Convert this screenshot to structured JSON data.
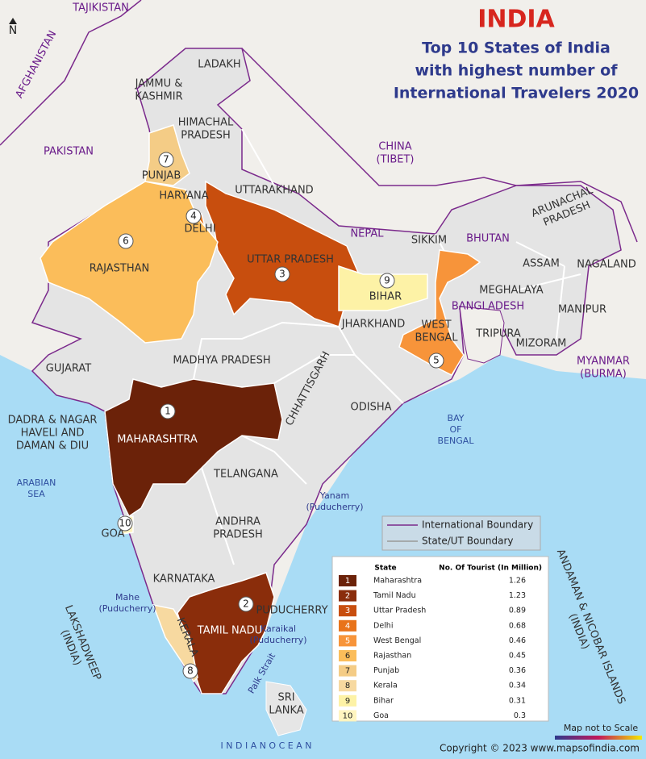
{
  "header": {
    "title": "INDIA",
    "subtitle_lines": [
      "Top 10 States of India",
      "with highest number of",
      "International Travelers 2020"
    ]
  },
  "north": "N",
  "places": [
    {
      "lines": [
        "TAJIKISTAN"
      ]
    },
    {
      "lines": [
        "AFGHANISTAN"
      ]
    },
    {
      "lines": [
        "PAKISTAN"
      ]
    },
    {
      "lines": [
        "LADAKH"
      ]
    },
    {
      "lines": [
        "JAMMU &",
        "KASHMIR"
      ]
    },
    {
      "lines": [
        "HIMACHAL",
        "PRADESH"
      ]
    },
    {
      "lines": [
        "CHINA",
        "(TIBET)"
      ]
    },
    {
      "lines": [
        "PUNJAB"
      ]
    },
    {
      "lines": [
        "HARYANA"
      ]
    },
    {
      "lines": [
        "UTTARAKHAND"
      ]
    },
    {
      "lines": [
        "DELHI"
      ]
    },
    {
      "lines": [
        "RAJASTHAN"
      ]
    },
    {
      "lines": [
        "UTTAR  PRADESH"
      ]
    },
    {
      "lines": [
        "NEPAL"
      ]
    },
    {
      "lines": [
        "SIKKIM"
      ]
    },
    {
      "lines": [
        "BHUTAN"
      ]
    },
    {
      "lines": [
        "ARUNACHAL",
        "PRADESH"
      ]
    },
    {
      "lines": [
        "ASSAM"
      ]
    },
    {
      "lines": [
        "NAGALAND"
      ]
    },
    {
      "lines": [
        "BIHAR"
      ]
    },
    {
      "lines": [
        "MEGHALAYA"
      ]
    },
    {
      "lines": [
        "BANGLADESH"
      ]
    },
    {
      "lines": [
        "MANIPUR"
      ]
    },
    {
      "lines": [
        "JHARKHAND"
      ]
    },
    {
      "lines": [
        "WEST",
        "BENGAL"
      ]
    },
    {
      "lines": [
        "TRIPURA"
      ]
    },
    {
      "lines": [
        "MIZORAM"
      ]
    },
    {
      "lines": [
        "MYANMAR",
        "(BURMA)"
      ]
    },
    {
      "lines": [
        "GUJARAT"
      ]
    },
    {
      "lines": [
        "MADHYA PRADESH"
      ]
    },
    {
      "lines": [
        "CHHATTISGARH"
      ]
    },
    {
      "lines": [
        "ODISHA"
      ]
    },
    {
      "lines": [
        "BAY",
        "OF",
        "BENGAL"
      ]
    },
    {
      "lines": [
        "DADRA & NAGAR",
        "HAVELI AND",
        "DAMAN & DIU"
      ]
    },
    {
      "lines": [
        "MAHARASHTRA"
      ]
    },
    {
      "lines": [
        "TELANGANA"
      ]
    },
    {
      "lines": [
        "ARABIAN",
        "SEA"
      ]
    },
    {
      "lines": [
        "Yanam",
        "(Puducherry)"
      ]
    },
    {
      "lines": [
        "ANDHRA",
        "PRADESH"
      ]
    },
    {
      "lines": [
        "GOA"
      ]
    },
    {
      "lines": [
        "KARNATAKA"
      ]
    },
    {
      "lines": [
        "Mahe",
        "(Puducherry)"
      ]
    },
    {
      "lines": [
        "PUDUCHERRY"
      ]
    },
    {
      "lines": [
        "TAMIL NADU"
      ]
    },
    {
      "lines": [
        "KERALA"
      ]
    },
    {
      "lines": [
        "Karaikal",
        "(Puducherry)"
      ]
    },
    {
      "lines": [
        "LAKSHADWEEP",
        "(INDIA)"
      ]
    },
    {
      "lines": [
        "Palk Strait"
      ]
    },
    {
      "lines": [
        "ANDAMAN & NICOBAR ISLANDS",
        "(INDIA)"
      ]
    },
    {
      "lines": [
        "SRI",
        "LANKA"
      ]
    },
    {
      "lines": [
        "I N D I A N     O C E A N"
      ]
    }
  ],
  "legend_lines": [
    "International Boundary",
    "State/UT Boundary"
  ],
  "table": {
    "headers": [
      "State",
      "No. Of Tourist (In Million)"
    ],
    "rows": [
      [
        1,
        "Maharashtra",
        1.26
      ],
      [
        2,
        "Tamil Nadu",
        1.23
      ],
      [
        3,
        "Uttar Pradesh",
        0.89
      ],
      [
        4,
        "Delhi",
        0.68
      ],
      [
        5,
        "West Bengal",
        0.46
      ],
      [
        6,
        "Rajasthan",
        0.45
      ],
      [
        7,
        "Punjab",
        0.36
      ],
      [
        8,
        "Kerala",
        0.34
      ],
      [
        9,
        "Bihar",
        0.31
      ],
      [
        10,
        "Goa",
        0.3
      ]
    ]
  },
  "footer": {
    "note": "Map not to Scale",
    "copyright": "Copyright © 2023 www.mapsofindia.com"
  }
}
